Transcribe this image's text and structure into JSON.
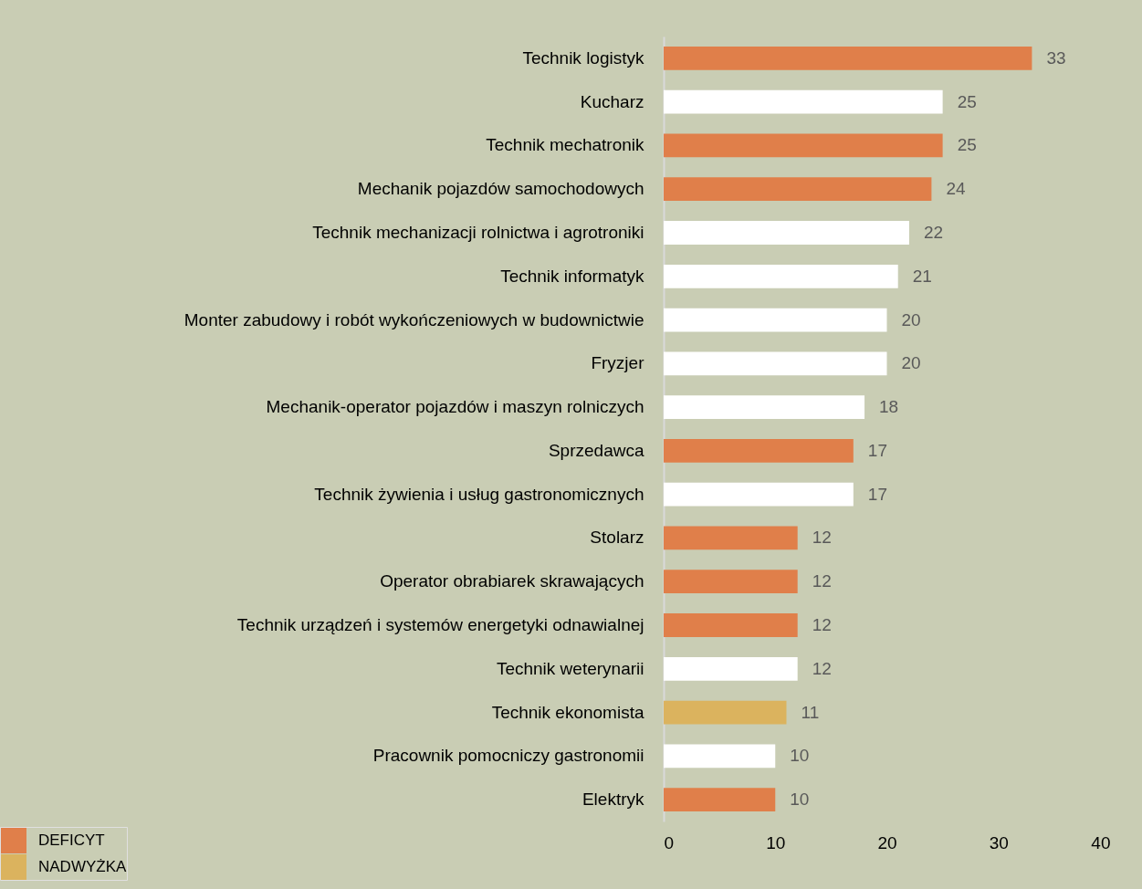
{
  "chart_data": {
    "type": "bar",
    "orientation": "horizontal",
    "categories": [
      "Technik logistyk",
      "Kucharz",
      "Technik mechatronik",
      "Mechanik pojazdów samochodowych",
      "Technik mechanizacji rolnictwa i agrotroniki",
      "Technik informatyk",
      "Monter zabudowy i robót wykończeniowych w budownictwie",
      "Fryzjer",
      "Mechanik-operator pojazdów i maszyn rolniczych",
      "Sprzedawca",
      "Technik żywienia i usług gastronomicznych",
      "Stolarz",
      "Operator obrabiarek skrawających",
      "Technik urządzeń i systemów energetyki odnawialnej",
      "Technik weterynarii",
      "Technik ekonomista",
      "Pracownik pomocniczy gastronomii",
      "Elektryk"
    ],
    "series": [
      {
        "name": "DEFICYT",
        "color": "#e07f4a",
        "values": [
          33,
          null,
          25,
          24,
          null,
          null,
          null,
          null,
          null,
          17,
          null,
          12,
          12,
          12,
          null,
          null,
          null,
          10
        ]
      },
      {
        "name": "NADWYŻKA",
        "color": "#dbb35e",
        "values": [
          null,
          null,
          null,
          null,
          null,
          null,
          null,
          null,
          null,
          null,
          null,
          null,
          null,
          null,
          null,
          11,
          null,
          null
        ]
      },
      {
        "color": "#ffffff",
        "values": [
          null,
          25,
          null,
          null,
          22,
          21,
          20,
          20,
          18,
          null,
          17,
          null,
          null,
          null,
          12,
          null,
          10,
          null
        ]
      }
    ],
    "xlim": [
      0,
      40
    ],
    "xticks": [
      0,
      10,
      20,
      30,
      40
    ],
    "data_labels": true,
    "grid": false,
    "legend": "bottom left"
  }
}
